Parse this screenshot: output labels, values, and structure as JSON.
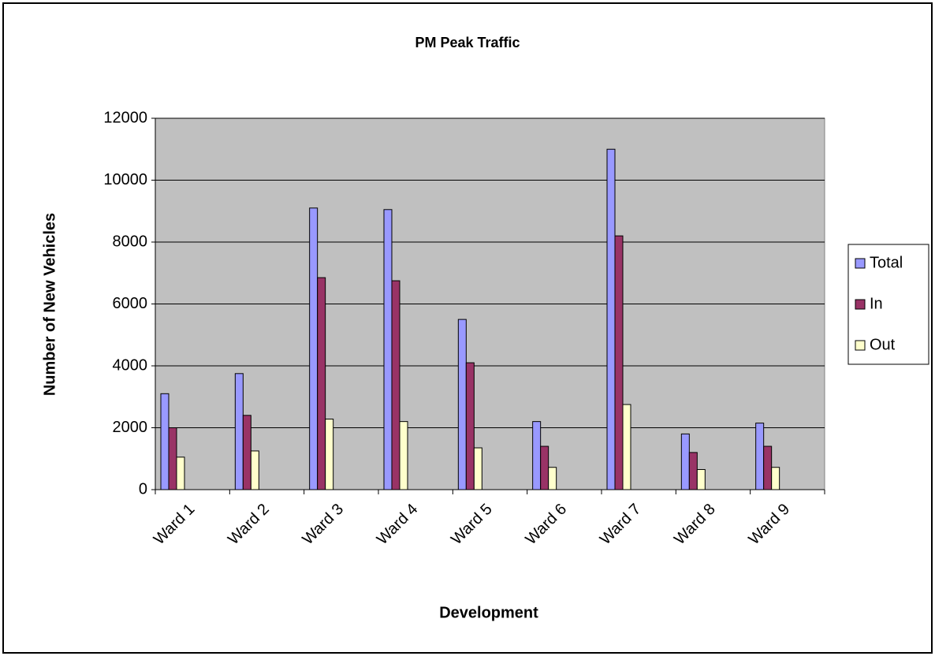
{
  "chart_data": {
    "type": "bar",
    "title": "PM Peak Traffic",
    "x_label": "Development",
    "y_label": "Number of New Vehicles",
    "categories": [
      "Ward 1",
      "Ward 2",
      "Ward 3",
      "Ward 4",
      "Ward 5",
      "Ward 6",
      "Ward 7",
      "Ward 8",
      "Ward 9"
    ],
    "series": [
      {
        "name": "Total",
        "color": "#9999ff",
        "values": [
          3100,
          3750,
          9100,
          9050,
          5500,
          2200,
          11000,
          1800,
          2150
        ]
      },
      {
        "name": "In",
        "color": "#993366",
        "values": [
          2000,
          2400,
          6850,
          6750,
          4100,
          1400,
          8200,
          1200,
          1400
        ]
      },
      {
        "name": "Out",
        "color": "#ffffcc",
        "values": [
          1050,
          1250,
          2280,
          2200,
          1350,
          720,
          2750,
          650,
          720
        ]
      }
    ],
    "ylim": [
      0,
      12000
    ],
    "yticks": [
      0,
      2000,
      4000,
      6000,
      8000,
      10000,
      12000
    ],
    "grid": true,
    "legend": "right"
  }
}
